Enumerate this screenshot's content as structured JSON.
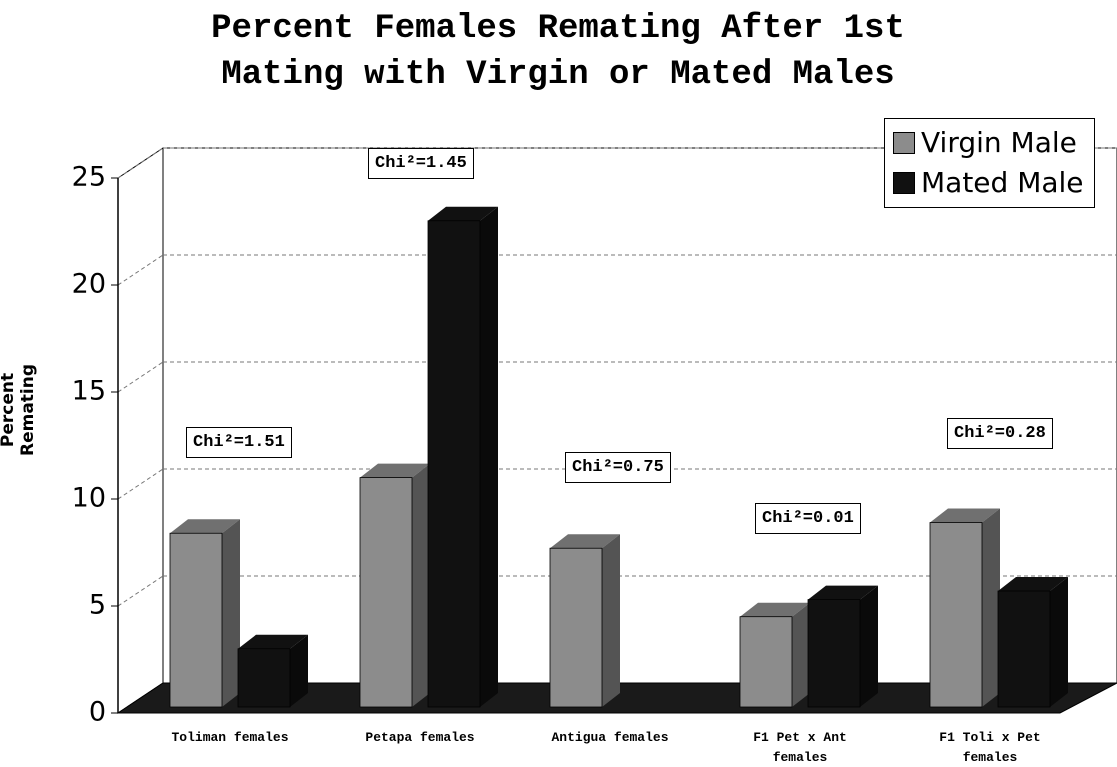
{
  "chart_data": {
    "type": "bar3d",
    "title": "Percent Females Remating After 1st Mating with Virgin or Mated Males",
    "y_label": "Percent Remating",
    "categories": [
      "Toliman females",
      "Petapa females",
      "Antigua females",
      "F1 Pet x Ant females",
      "F1 Toli x Pet females"
    ],
    "series": [
      {
        "name": "Virgin Male",
        "color": "#8c8c8c",
        "values": [
          8.4,
          11,
          7.7,
          4.5,
          8.9
        ]
      },
      {
        "name": "Mated Male",
        "color": "#111111",
        "values": [
          3.0,
          23,
          0,
          5.3,
          5.7
        ]
      }
    ],
    "annotations": [
      "Chi²=1.51",
      "Chi²=1.45",
      "Chi²=0.75",
      "Chi²=0.01",
      "Chi²=0.28"
    ],
    "ylim": [
      0,
      25
    ],
    "yticks": [
      0,
      5,
      10,
      15,
      20,
      25
    ],
    "grid": true,
    "legend": "top-right"
  }
}
